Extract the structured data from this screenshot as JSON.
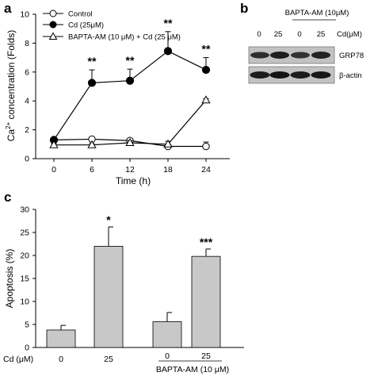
{
  "panels": {
    "a": "a",
    "b": "b",
    "c": "c"
  },
  "chart_data": [
    {
      "panel": "a",
      "type": "line",
      "x": [
        0,
        6,
        12,
        18,
        24
      ],
      "xlabel": "Time (h)",
      "ylabel_parts": [
        "Ca",
        "2+",
        " concentration (Folds)"
      ],
      "xticks": [
        "0",
        "6",
        "12",
        "18",
        "24"
      ],
      "yticks": [
        "0",
        "2",
        "4",
        "6",
        "8",
        "10"
      ],
      "ylim": [
        0,
        10
      ],
      "legend_position": "top-left",
      "series": [
        {
          "name": "Control",
          "marker": "open-circle",
          "values": [
            1.3,
            1.35,
            1.25,
            0.85,
            0.85
          ],
          "errors": [
            0.1,
            0.1,
            0.15,
            0.15,
            0.3
          ]
        },
        {
          "name": "Cd (25μM)",
          "marker": "filled-circle",
          "values": [
            1.3,
            5.25,
            5.4,
            7.45,
            6.15
          ],
          "errors": [
            0.1,
            0.9,
            0.8,
            1.35,
            0.85
          ]
        },
        {
          "name": "BAPTA-AM (10 μM) + Cd (25 μM)",
          "marker": "open-triangle",
          "values": [
            0.95,
            0.95,
            1.1,
            1.0,
            4.05
          ],
          "errors": [
            0.1,
            0.1,
            0.15,
            0.2,
            0.1
          ]
        }
      ],
      "annotations": [
        {
          "x": 6,
          "text": "**"
        },
        {
          "x": 12,
          "text": "**"
        },
        {
          "x": 18,
          "text": "**"
        },
        {
          "x": 24,
          "text": "**"
        }
      ]
    },
    {
      "panel": "c",
      "type": "bar",
      "categories": [
        "0",
        "25",
        "0",
        "25"
      ],
      "values": [
        3.8,
        22.0,
        5.6,
        19.8
      ],
      "errors": [
        1.0,
        4.2,
        2.0,
        1.6
      ],
      "ylabel": "Apoptosis (%)",
      "yticks": [
        "0",
        "5",
        "10",
        "15",
        "20",
        "25",
        "30"
      ],
      "ylim": [
        0,
        30
      ],
      "row_label": "Cd (μM)",
      "group_label": "BAPTA-AM  (10 μM)",
      "annotations": [
        {
          "index": 1,
          "text": "*"
        },
        {
          "index": 3,
          "text": "***"
        }
      ],
      "bar_color": "#c8c8c8"
    }
  ],
  "blot": {
    "group_label": "BAPTA-AM (10μM)",
    "lane_labels": [
      "0",
      "25",
      "0",
      "25"
    ],
    "row_label": "Cd(μM)",
    "bands": [
      "GRP78",
      "β-actin"
    ]
  }
}
